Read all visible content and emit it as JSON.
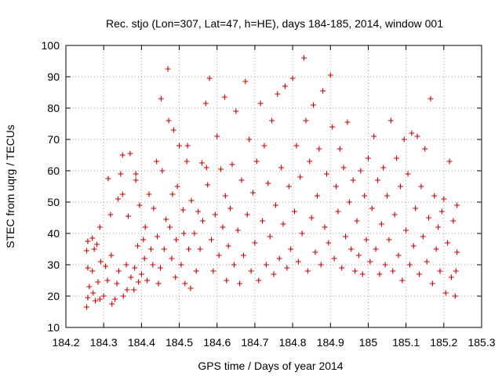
{
  "chart_data": {
    "type": "scatter",
    "title": "Rec. stjo (Lon=307, Lat=47, h=HE), days 184-185, 2014, window 001",
    "xlabel": "GPS time / Days of year 2014",
    "ylabel": "STEC from uqrg / TECUs",
    "xlim": [
      184.2,
      185.3
    ],
    "ylim": [
      10,
      100
    ],
    "xticks": [
      "184.2",
      "184.3",
      "184.4",
      "184.5",
      "184.6",
      "184.7",
      "184.8",
      "184.9",
      "185",
      "185.1",
      "185.2",
      "185.3"
    ],
    "yticks": [
      "10",
      "20",
      "30",
      "40",
      "50",
      "60",
      "70",
      "80",
      "90",
      "100"
    ],
    "marker": "+",
    "color": "#cc0000",
    "series": [
      {
        "name": "STEC",
        "points": [
          [
            184.255,
            16.5
          ],
          [
            184.258,
            19.5
          ],
          [
            184.262,
            23
          ],
          [
            184.258,
            29
          ],
          [
            184.255,
            34.5
          ],
          [
            184.258,
            37.5
          ],
          [
            184.27,
            38.5
          ],
          [
            184.275,
            35
          ],
          [
            184.27,
            28
          ],
          [
            184.272,
            21
          ],
          [
            184.278,
            18.5
          ],
          [
            184.285,
            24.5
          ],
          [
            184.29,
            19
          ],
          [
            184.292,
            31
          ],
          [
            184.29,
            42
          ],
          [
            184.282,
            36.5
          ],
          [
            184.3,
            20
          ],
          [
            184.305,
            29.5
          ],
          [
            184.31,
            25
          ],
          [
            184.312,
            57.5
          ],
          [
            184.32,
            33
          ],
          [
            184.318,
            46
          ],
          [
            184.322,
            17.5
          ],
          [
            184.33,
            19
          ],
          [
            184.335,
            24
          ],
          [
            184.34,
            28
          ],
          [
            184.338,
            51
          ],
          [
            184.345,
            59
          ],
          [
            184.35,
            52.5
          ],
          [
            184.35,
            65
          ],
          [
            184.352,
            20
          ],
          [
            184.36,
            30
          ],
          [
            184.362,
            22
          ],
          [
            184.365,
            45.5
          ],
          [
            184.37,
            65.5
          ],
          [
            184.372,
            26
          ],
          [
            184.38,
            22
          ],
          [
            184.382,
            29
          ],
          [
            184.385,
            57
          ],
          [
            184.385,
            59
          ],
          [
            184.39,
            36
          ],
          [
            184.392,
            24.5
          ],
          [
            184.395,
            49
          ],
          [
            184.4,
            27
          ],
          [
            184.405,
            38
          ],
          [
            184.408,
            32
          ],
          [
            184.41,
            42
          ],
          [
            184.415,
            25
          ],
          [
            184.42,
            52.5
          ],
          [
            184.425,
            35
          ],
          [
            184.43,
            30
          ],
          [
            184.432,
            48
          ],
          [
            184.44,
            63
          ],
          [
            184.442,
            39
          ],
          [
            184.445,
            24
          ],
          [
            184.45,
            29
          ],
          [
            184.452,
            83
          ],
          [
            184.455,
            60
          ],
          [
            184.46,
            35
          ],
          [
            184.465,
            44.5
          ],
          [
            184.47,
            92.5
          ],
          [
            184.472,
            76
          ],
          [
            184.475,
            42
          ],
          [
            184.48,
            32
          ],
          [
            184.482,
            52.5
          ],
          [
            184.485,
            73
          ],
          [
            184.49,
            26
          ],
          [
            184.492,
            38
          ],
          [
            184.495,
            55
          ],
          [
            184.5,
            68
          ],
          [
            184.505,
            30
          ],
          [
            184.51,
            47.5
          ],
          [
            184.512,
            40
          ],
          [
            184.515,
            24
          ],
          [
            184.52,
            63
          ],
          [
            184.522,
            68
          ],
          [
            184.525,
            35
          ],
          [
            184.53,
            22.5
          ],
          [
            184.532,
            50.5
          ],
          [
            184.54,
            40
          ],
          [
            184.545,
            28
          ],
          [
            184.55,
            47
          ],
          [
            184.555,
            35
          ],
          [
            184.56,
            62.5
          ],
          [
            184.562,
            44
          ],
          [
            184.57,
            81.5
          ],
          [
            184.572,
            61
          ],
          [
            184.575,
            55.5
          ],
          [
            184.58,
            89.5
          ],
          [
            184.585,
            38
          ],
          [
            184.59,
            28
          ],
          [
            184.595,
            46
          ],
          [
            184.6,
            71
          ],
          [
            184.605,
            33
          ],
          [
            184.61,
            60.5
          ],
          [
            184.615,
            42
          ],
          [
            184.62,
            83.5
          ],
          [
            184.622,
            52
          ],
          [
            184.625,
            25
          ],
          [
            184.63,
            36
          ],
          [
            184.635,
            48
          ],
          [
            184.64,
            62
          ],
          [
            184.645,
            30
          ],
          [
            184.65,
            79
          ],
          [
            184.655,
            41
          ],
          [
            184.66,
            24
          ],
          [
            184.665,
            57
          ],
          [
            184.67,
            33
          ],
          [
            184.675,
            88.5
          ],
          [
            184.68,
            46
          ],
          [
            184.685,
            70
          ],
          [
            184.69,
            28
          ],
          [
            184.695,
            53
          ],
          [
            184.7,
            37
          ],
          [
            184.705,
            63
          ],
          [
            184.71,
            25
          ],
          [
            184.715,
            81.5
          ],
          [
            184.72,
            44
          ],
          [
            184.725,
            68
          ],
          [
            184.73,
            30
          ],
          [
            184.735,
            56
          ],
          [
            184.74,
            39
          ],
          [
            184.745,
            76
          ],
          [
            184.75,
            27
          ],
          [
            184.755,
            49
          ],
          [
            184.76,
            84.5
          ],
          [
            184.765,
            32
          ],
          [
            184.77,
            61
          ],
          [
            184.775,
            43
          ],
          [
            184.78,
            87
          ],
          [
            184.785,
            29
          ],
          [
            184.79,
            55
          ],
          [
            184.795,
            35
          ],
          [
            184.8,
            89.5
          ],
          [
            184.805,
            47
          ],
          [
            184.81,
            68
          ],
          [
            184.815,
            31
          ],
          [
            184.82,
            58
          ],
          [
            184.825,
            40
          ],
          [
            184.83,
            96
          ],
          [
            184.835,
            76
          ],
          [
            184.84,
            28
          ],
          [
            184.845,
            63
          ],
          [
            184.85,
            45
          ],
          [
            184.855,
            81
          ],
          [
            184.86,
            34
          ],
          [
            184.865,
            52
          ],
          [
            184.87,
            67
          ],
          [
            184.875,
            30
          ],
          [
            184.88,
            85.5
          ],
          [
            184.885,
            42
          ],
          [
            184.89,
            59
          ],
          [
            184.895,
            37
          ],
          [
            184.9,
            90.5
          ],
          [
            184.905,
            74
          ],
          [
            184.91,
            32
          ],
          [
            184.915,
            55
          ],
          [
            184.92,
            47
          ],
          [
            184.925,
            67
          ],
          [
            184.93,
            29
          ],
          [
            184.935,
            61
          ],
          [
            184.94,
            39
          ],
          [
            184.945,
            75.5
          ],
          [
            184.95,
            50
          ],
          [
            184.955,
            35
          ],
          [
            184.96,
            57
          ],
          [
            184.965,
            28
          ],
          [
            184.97,
            44
          ],
          [
            184.975,
            33
          ],
          [
            184.98,
            60
          ],
          [
            184.985,
            27
          ],
          [
            184.99,
            52
          ],
          [
            184.995,
            38
          ],
          [
            185.0,
            64
          ],
          [
            185.005,
            31
          ],
          [
            185.01,
            48
          ],
          [
            185.015,
            71
          ],
          [
            185.02,
            35
          ],
          [
            185.025,
            57
          ],
          [
            185.03,
            27
          ],
          [
            185.035,
            43
          ],
          [
            185.04,
            61
          ],
          [
            185.045,
            30
          ],
          [
            185.05,
            52
          ],
          [
            185.055,
            38
          ],
          [
            185.06,
            76
          ],
          [
            185.065,
            28
          ],
          [
            185.07,
            46
          ],
          [
            185.075,
            64
          ],
          [
            185.08,
            33
          ],
          [
            185.085,
            55
          ],
          [
            185.09,
            25
          ],
          [
            185.095,
            70
          ],
          [
            185.1,
            41
          ],
          [
            185.105,
            59
          ],
          [
            185.11,
            30
          ],
          [
            185.115,
            72
          ],
          [
            185.12,
            36
          ],
          [
            185.125,
            48
          ],
          [
            185.13,
            71
          ],
          [
            185.135,
            27
          ],
          [
            185.14,
            55
          ],
          [
            185.145,
            39
          ],
          [
            185.15,
            67
          ],
          [
            185.155,
            31
          ],
          [
            185.16,
            45
          ],
          [
            185.165,
            83
          ],
          [
            185.17,
            24
          ],
          [
            185.175,
            52
          ],
          [
            185.18,
            35
          ],
          [
            185.185,
            42
          ],
          [
            185.19,
            28
          ],
          [
            185.195,
            47
          ],
          [
            185.2,
            51
          ],
          [
            185.205,
            21
          ],
          [
            185.21,
            37
          ],
          [
            185.215,
            63
          ],
          [
            185.22,
            26
          ],
          [
            185.225,
            44
          ],
          [
            185.23,
            20
          ],
          [
            185.235,
            49
          ],
          [
            185.235,
            34
          ],
          [
            185.232,
            28
          ]
        ]
      }
    ]
  }
}
